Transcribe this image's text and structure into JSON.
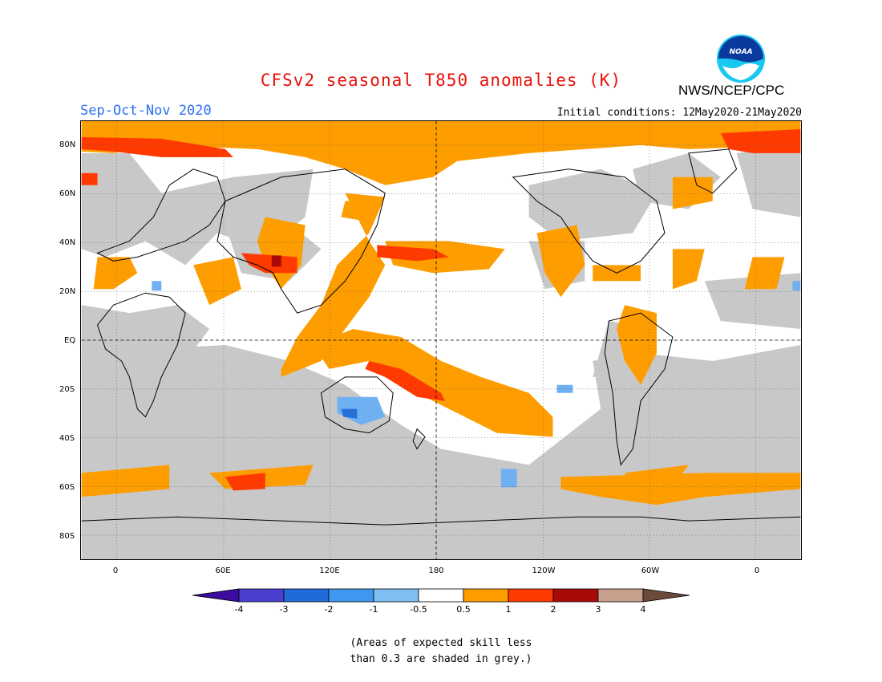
{
  "title": "CFSv2 seasonal T850 anomalies (K)",
  "season": "Sep-Oct-Nov 2020",
  "agency": "NWS/NCEP/CPC",
  "logo_text": "NOAA",
  "initial_conditions": "Initial conditions: 12May2020-21May2020",
  "lat_labels": [
    "80N",
    "60N",
    "40N",
    "20N",
    "EQ",
    "20S",
    "40S",
    "60S",
    "80S"
  ],
  "lon_labels": [
    "0",
    "60E",
    "120E",
    "180",
    "120W",
    "60W",
    "0"
  ],
  "colorbar": {
    "tick_labels": [
      "-4",
      "-3",
      "-2",
      "-1",
      "-0.5",
      "0.5",
      "1",
      "2",
      "3",
      "4"
    ],
    "colors": [
      "#3a0ca0",
      "#4a3fd0",
      "#1f6bd8",
      "#3f98ef",
      "#7fbff4",
      "#ffffff",
      "#fe9d00",
      "#ff3a00",
      "#a80a0a",
      "#c8a08c",
      "#6b4a3c"
    ]
  },
  "note_line1": "(Areas of expected skill less",
  "note_line2": "than 0.3 are shaded in grey.)",
  "colors": {
    "grey": "#c8c8c8",
    "orange": "#fe9d00",
    "red": "#ff3a00",
    "darkred": "#a80a0a",
    "lightblue": "#6fb0f2",
    "blue": "#2a6fd6"
  }
}
